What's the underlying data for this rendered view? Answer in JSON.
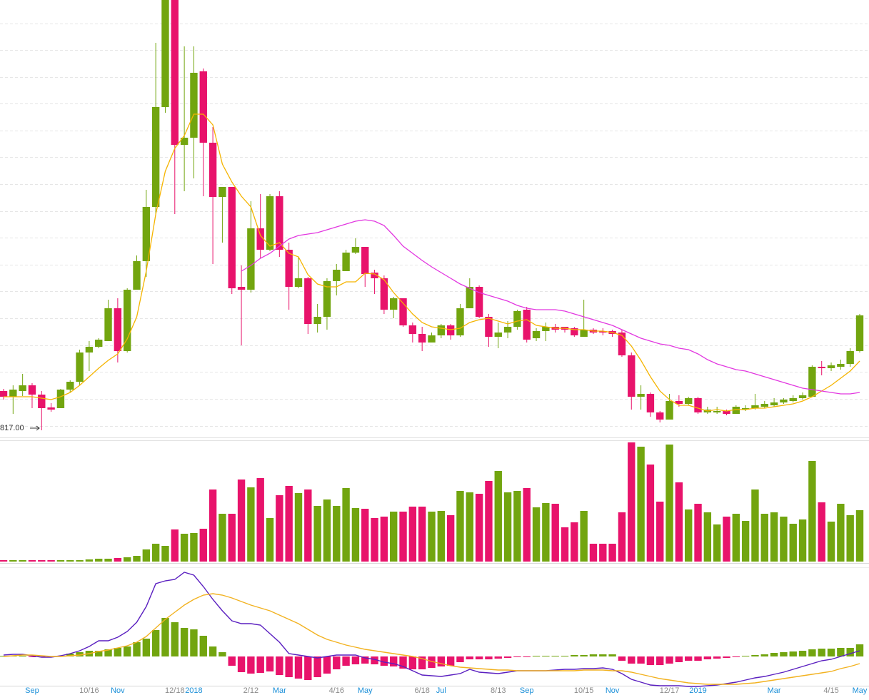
{
  "chart_data": [
    {
      "type": "candlestick",
      "categories": [
        null,
        null,
        null,
        "Sep",
        null,
        null,
        null,
        null,
        null,
        "10/16",
        null,
        null,
        "Nov",
        null,
        null,
        null,
        null,
        null,
        "12/18",
        null,
        "2018",
        null,
        null,
        null,
        null,
        null,
        "2/12",
        null,
        null,
        "Mar",
        null,
        null,
        null,
        null,
        null,
        "4/16",
        null,
        null,
        "May",
        null,
        null,
        null,
        null,
        null,
        "6/18",
        null,
        "Jul",
        null,
        null,
        null,
        null,
        null,
        "8/13",
        null,
        null,
        "Sep",
        null,
        null,
        null,
        null,
        null,
        "10/15",
        null,
        null,
        "Nov",
        null,
        null,
        null,
        null,
        null,
        "12/17",
        null,
        null,
        "2019",
        null,
        null,
        null,
        null,
        null,
        null,
        null,
        "Mar",
        null,
        null,
        null,
        null,
        null,
        "4/15",
        null,
        null,
        "May"
      ],
      "open": [
        872,
        864,
        872,
        880,
        867,
        849,
        848,
        874,
        885,
        926,
        934,
        942,
        988,
        928,
        1014,
        1054,
        1130,
        1270,
        1420,
        1217,
        1227,
        1320,
        1220,
        1144,
        1158,
        1018,
        1014,
        1100,
        1070,
        1145,
        1070,
        1018,
        1030,
        966,
        976,
        1026,
        1040,
        1066,
        1074,
        1038,
        1030,
        986,
        1002,
        964,
        952,
        940,
        950,
        964,
        950,
        988,
        1018,
        976,
        948,
        954,
        962,
        986,
        946,
        956,
        962,
        962,
        960,
        948,
        958,
        956,
        956,
        954,
        922,
        864,
        868,
        842,
        832,
        858,
        854,
        862,
        842,
        842,
        844,
        840,
        846,
        848,
        850,
        852,
        856,
        858,
        862,
        864,
        906,
        904,
        906,
        910,
        928
      ],
      "high": [
        875,
        880,
        896,
        883,
        872,
        855,
        875,
        887,
        930,
        942,
        946,
        1000,
        1002,
        1016,
        1062,
        1154,
        1360,
        1420,
        1420,
        1355,
        1355,
        1324,
        1242,
        1158,
        1158,
        1048,
        1138,
        1148,
        1148,
        1152,
        1080,
        1060,
        1032,
        994,
        1030,
        1050,
        1070,
        1086,
        1074,
        1042,
        1034,
        1004,
        1002,
        968,
        962,
        954,
        966,
        966,
        994,
        1030,
        1020,
        980,
        968,
        970,
        986,
        990,
        960,
        968,
        966,
        962,
        962,
        1000,
        960,
        960,
        958,
        958,
        926,
        880,
        870,
        844,
        868,
        866,
        864,
        864,
        850,
        850,
        846,
        852,
        852,
        868,
        858,
        862,
        862,
        866,
        870,
        908,
        914,
        912,
        916,
        932,
        980
      ],
      "low": [
        860,
        840,
        865,
        848,
        817,
        843,
        848,
        870,
        880,
        900,
        932,
        942,
        912,
        926,
        1014,
        1032,
        1120,
        1262,
        1120,
        1152,
        1170,
        1145,
        1050,
        1080,
        1008,
        936,
        1010,
        1058,
        1068,
        1060,
        986,
        1016,
        952,
        954,
        958,
        1006,
        1040,
        1064,
        1018,
        1008,
        980,
        974,
        962,
        940,
        928,
        940,
        946,
        944,
        948,
        988,
        974,
        934,
        932,
        946,
        958,
        940,
        942,
        942,
        954,
        954,
        948,
        948,
        952,
        950,
        948,
        920,
        846,
        846,
        836,
        828,
        832,
        850,
        852,
        840,
        840,
        840,
        838,
        840,
        844,
        846,
        848,
        850,
        854,
        856,
        860,
        864,
        894,
        900,
        902,
        906,
        926
      ],
      "close": [
        864,
        874,
        880,
        867,
        848,
        846,
        874,
        885,
        926,
        934,
        944,
        988,
        928,
        1014,
        1054,
        1130,
        1270,
        1420,
        1217,
        1227,
        1318,
        1220,
        1144,
        1158,
        1016,
        1014,
        1100,
        1070,
        1145,
        1070,
        1018,
        1030,
        966,
        976,
        1026,
        1042,
        1066,
        1074,
        1036,
        1030,
        986,
        1002,
        964,
        952,
        940,
        950,
        964,
        950,
        988,
        1018,
        976,
        948,
        954,
        962,
        984,
        944,
        956,
        962,
        958,
        958,
        950,
        958,
        954,
        954,
        952,
        922,
        864,
        868,
        842,
        832,
        858,
        854,
        862,
        842,
        846,
        844,
        840,
        850,
        848,
        852,
        854,
        856,
        860,
        862,
        866,
        906,
        904,
        908,
        910,
        928,
        978
      ],
      "up_color": "#72a50f",
      "down_color": "#e8136b",
      "lines": [
        {
          "color": "#f5b400",
          "values": [
            864,
            864,
            864,
            864,
            862,
            860,
            864,
            870,
            880,
            892,
            904,
            915,
            924,
            945,
            976,
            1040,
            1120,
            1180,
            1212,
            1230,
            1260,
            1260,
            1245,
            1190,
            1165,
            1145,
            1130,
            1090,
            1075,
            1080,
            1065,
            1060,
            1035,
            1022,
            1018,
            1018,
            1025,
            1025,
            1037,
            1036,
            1028,
            1010,
            995,
            980,
            968,
            962,
            960,
            958,
            960,
            968,
            972,
            974,
            970,
            966,
            970,
            972,
            964,
            962,
            960,
            960,
            958,
            958,
            956,
            956,
            954,
            950,
            935,
            915,
            892,
            872,
            860,
            852,
            852,
            848,
            844,
            846,
            844,
            846,
            846,
            848,
            848,
            850,
            852,
            854,
            858,
            864,
            872,
            880,
            890,
            900,
            914
          ]
        },
        {
          "color": "#e237e0",
          "values": [
            null,
            null,
            null,
            null,
            null,
            null,
            null,
            null,
            null,
            null,
            null,
            null,
            null,
            null,
            null,
            null,
            null,
            null,
            null,
            null,
            null,
            null,
            null,
            null,
            null,
            1040,
            1048,
            1058,
            1065,
            1075,
            1085,
            1090,
            1092,
            1094,
            1098,
            1102,
            1106,
            1110,
            1112,
            1110,
            1104,
            1090,
            1075,
            1065,
            1055,
            1046,
            1038,
            1030,
            1022,
            1016,
            1010,
            1006,
            1002,
            998,
            992,
            988,
            986,
            986,
            986,
            984,
            980,
            976,
            972,
            968,
            964,
            958,
            952,
            946,
            942,
            938,
            936,
            932,
            930,
            924,
            916,
            910,
            906,
            902,
            900,
            896,
            892,
            888,
            884,
            880,
            876,
            874,
            872,
            870,
            868,
            868,
            870
          ]
        }
      ],
      "ylim": [
        805,
        1420
      ],
      "grid_lines": [
        1387,
        1350,
        1312,
        1275,
        1237,
        1200,
        1162,
        1124,
        1087,
        1049,
        1012,
        974,
        936,
        899,
        861,
        823
      ],
      "grid_color": "#e6e6e6",
      "label_colors": {
        "date": "#8a8a8a",
        "period": "#1a8fd8"
      },
      "annotations": [
        {
          "value": 817,
          "label": "817.00"
        }
      ]
    },
    {
      "type": "bar",
      "values": [
        2,
        2,
        2,
        2,
        2,
        2,
        2,
        2,
        2,
        3,
        4,
        4,
        5,
        6,
        8,
        17,
        25,
        22,
        45,
        39,
        40,
        46,
        101,
        67,
        67,
        115,
        104,
        117,
        61,
        93,
        106,
        96,
        101,
        78,
        87,
        78,
        103,
        75,
        74,
        61,
        63,
        70,
        70,
        77,
        77,
        70,
        71,
        65,
        99,
        97,
        95,
        113,
        127,
        97,
        99,
        103,
        76,
        82,
        81,
        48,
        55,
        71,
        25,
        25,
        25,
        69,
        167,
        161,
        136,
        84,
        164,
        111,
        73,
        81,
        69,
        52,
        63,
        67,
        57,
        101,
        67,
        69,
        63,
        53,
        59,
        141,
        83,
        56,
        81,
        65,
        72
      ],
      "up_color": "#72a50f",
      "down_color": "#e8136b",
      "ylim": [
        0,
        169
      ]
    },
    {
      "type": "macd",
      "values": [
        1,
        1,
        1,
        -1,
        -1,
        -1,
        1,
        4,
        6,
        8,
        8,
        10,
        12,
        14,
        20,
        25,
        37,
        54,
        48,
        40,
        38,
        29,
        14,
        6,
        -13,
        -22,
        -24,
        -23,
        -21,
        -26,
        -29,
        -31,
        -33,
        -29,
        -24,
        -18,
        -13,
        -11,
        -10,
        -11,
        -13,
        -14,
        -17,
        -18,
        -18,
        -16,
        -14,
        -13,
        -8,
        -4,
        -4,
        -4,
        -3,
        -2,
        -1,
        -1,
        1,
        1,
        1,
        1,
        2,
        2,
        3,
        3,
        3,
        -6,
        -10,
        -10,
        -12,
        -12,
        -10,
        -8,
        -6,
        -6,
        -4,
        -3,
        -2,
        -1,
        1,
        2,
        3,
        5,
        6,
        7,
        8,
        10,
        11,
        11,
        12,
        12,
        17
      ],
      "up_color": "#72a50f",
      "down_color": "#e8136b",
      "lines": [
        {
          "color": "#5a1fc0",
          "values": [
            2,
            3,
            3,
            1,
            -1,
            -1,
            1,
            4,
            8,
            14,
            22,
            22,
            27,
            35,
            48,
            70,
            102,
            106,
            108,
            118,
            114,
            98,
            80,
            64,
            50,
            46,
            46,
            44,
            32,
            20,
            4,
            2,
            0,
            -2,
            0,
            2,
            2,
            2,
            -2,
            -4,
            -8,
            -10,
            -14,
            -20,
            -26,
            -27,
            -28,
            -26,
            -24,
            -18,
            -22,
            -23,
            -24,
            -22,
            -20,
            -20,
            -20,
            -20,
            -19,
            -18,
            -18,
            -17,
            -17,
            -16,
            -18,
            -24,
            -32,
            -36,
            -40,
            -41,
            -41,
            -41,
            -42,
            -42,
            -41,
            -40,
            -38,
            -36,
            -33,
            -30,
            -28,
            -25,
            -22,
            -18,
            -14,
            -10,
            -6,
            -4,
            0,
            4,
            8
          ]
        },
        {
          "color": "#f2b220",
          "values": [
            0,
            1,
            2,
            2,
            1,
            0,
            0,
            1,
            2,
            4,
            7,
            9,
            12,
            15,
            20,
            28,
            40,
            52,
            62,
            72,
            80,
            86,
            88,
            86,
            82,
            77,
            72,
            68,
            64,
            58,
            52,
            46,
            38,
            30,
            24,
            20,
            16,
            13,
            10,
            8,
            6,
            4,
            2,
            0,
            -3,
            -7,
            -10,
            -13,
            -15,
            -16,
            -17,
            -18,
            -19,
            -19,
            -20,
            -20,
            -20,
            -20,
            -20,
            -20,
            -20,
            -19,
            -19,
            -19,
            -20,
            -20,
            -22,
            -25,
            -28,
            -31,
            -33,
            -35,
            -37,
            -38,
            -39,
            -39,
            -39,
            -39,
            -38,
            -37,
            -35,
            -33,
            -31,
            -29,
            -27,
            -25,
            -23,
            -21,
            -17,
            -14,
            -10
          ]
        }
      ],
      "ylim": [
        -45,
        120
      ]
    }
  ]
}
